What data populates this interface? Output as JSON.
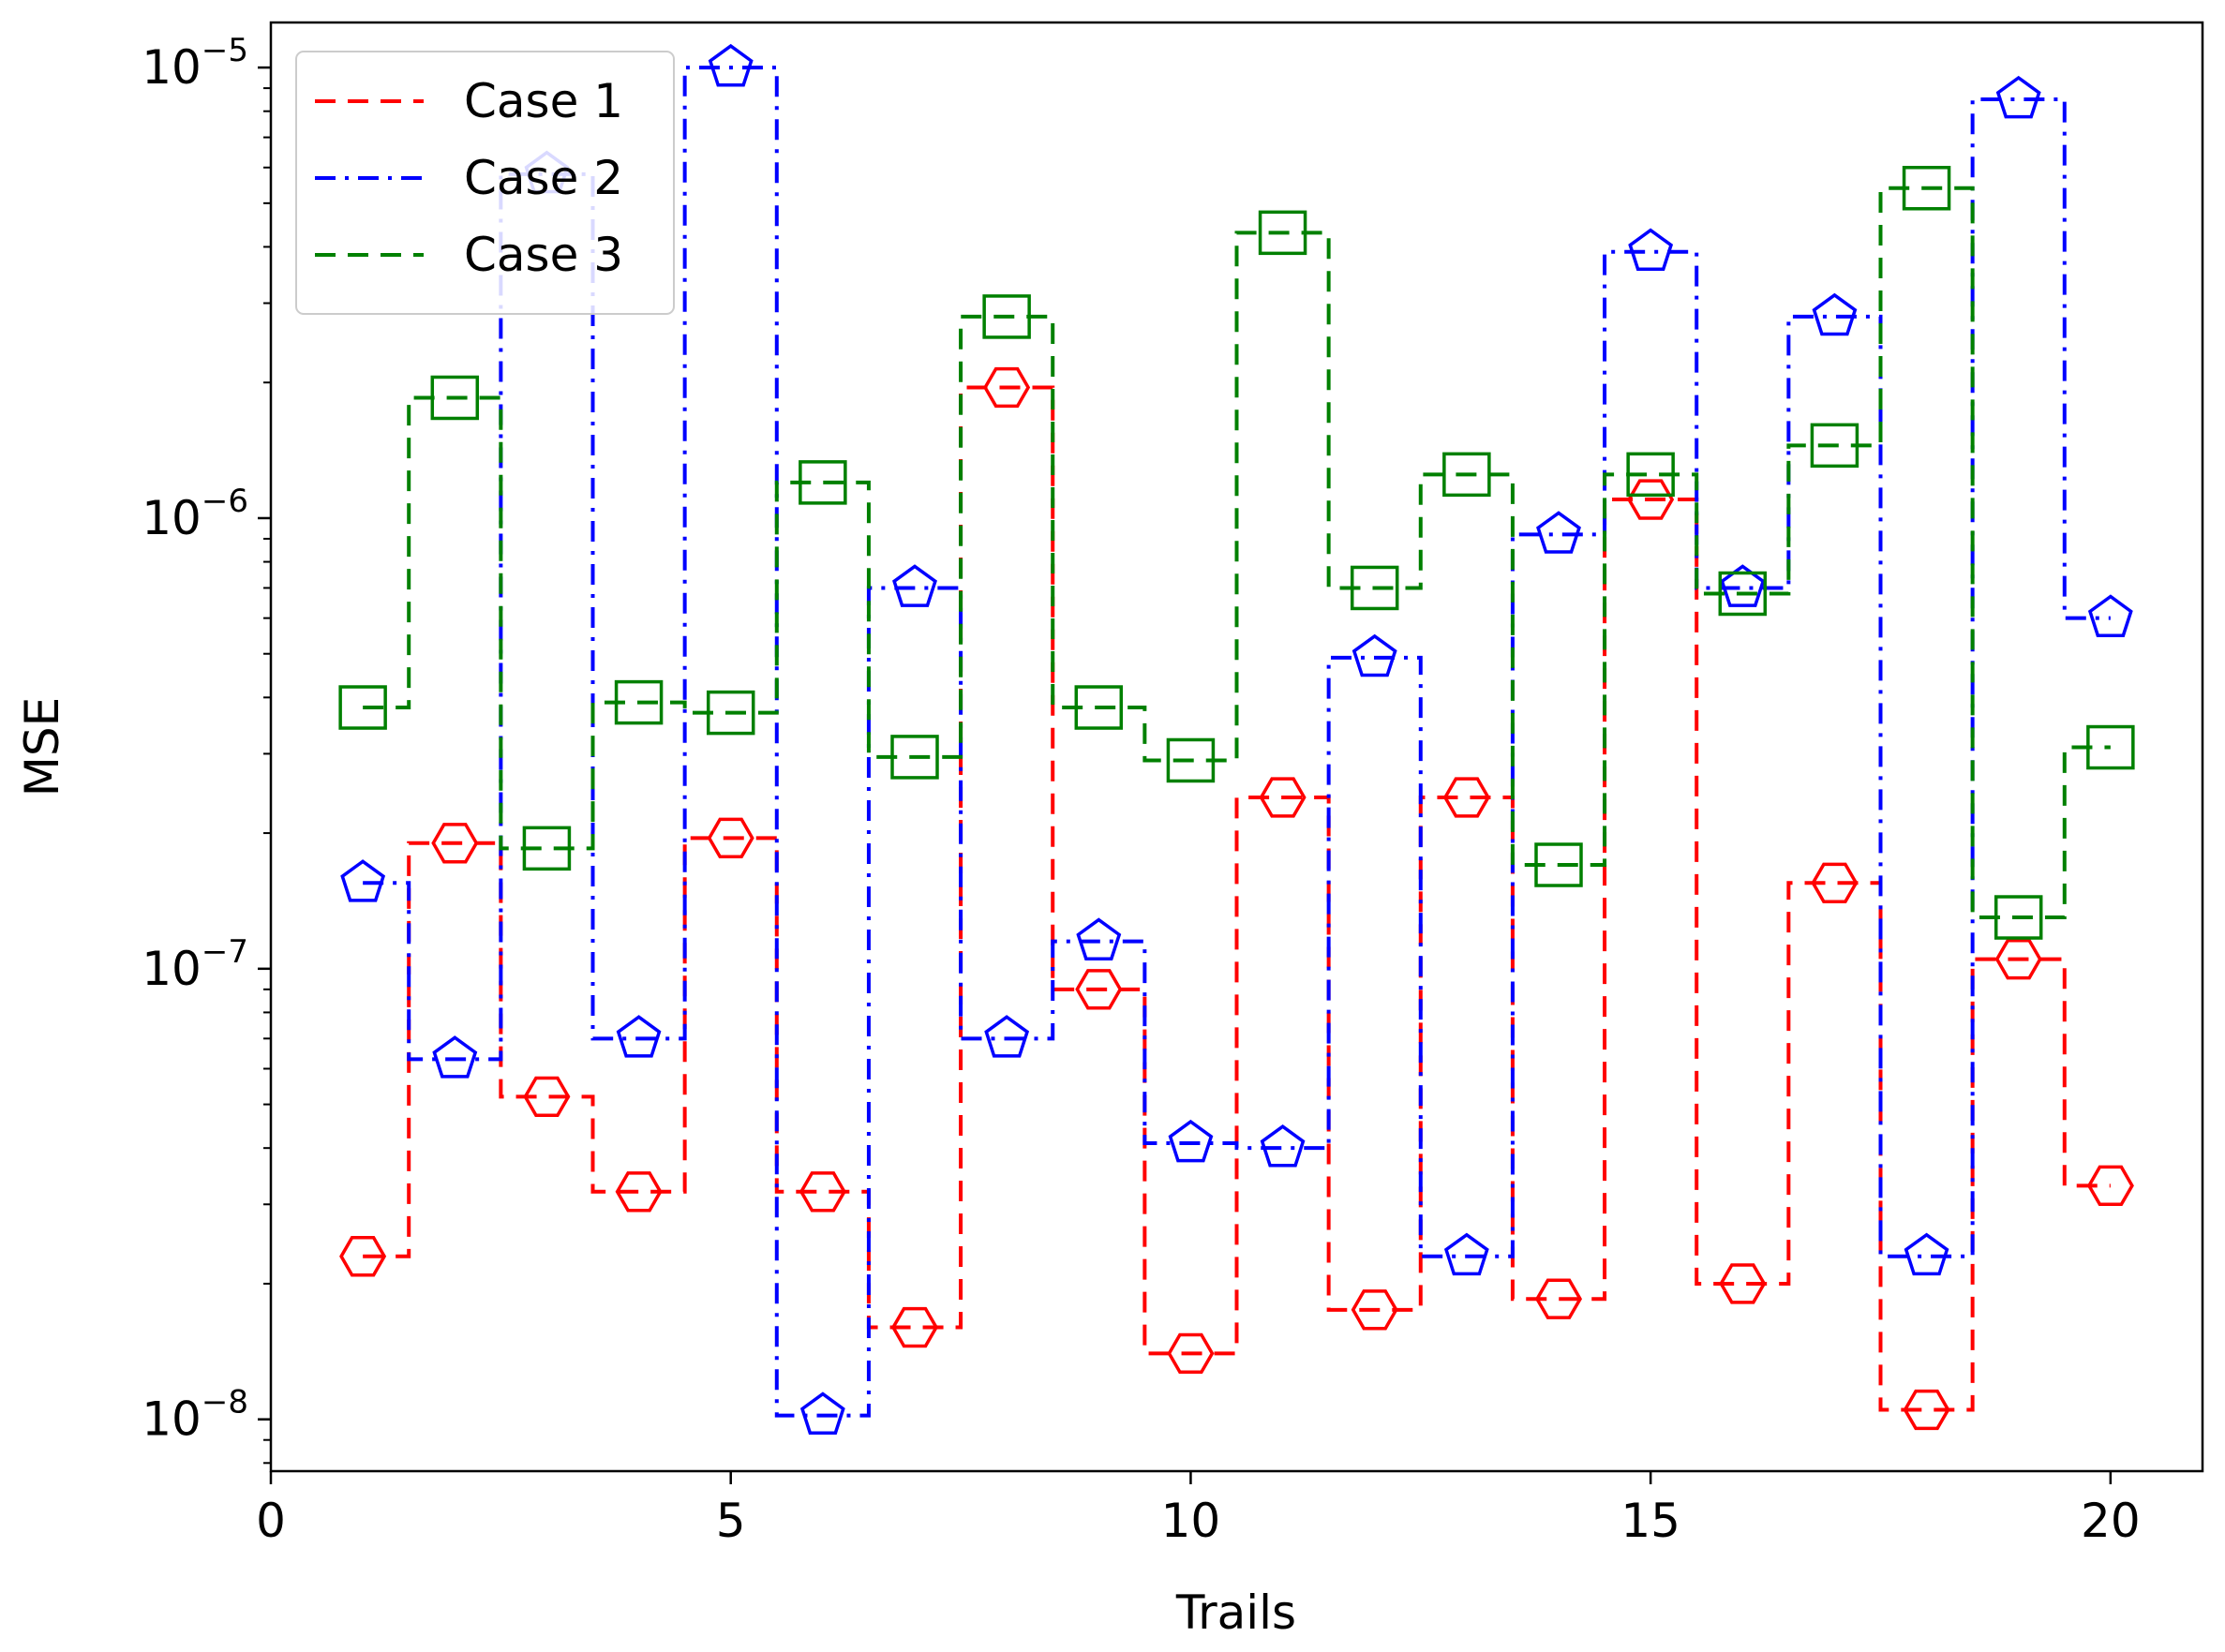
{
  "chart_data": {
    "type": "line",
    "title": "",
    "xlabel": "Trails",
    "ylabel": "MSE",
    "xlim": [
      0,
      21
    ],
    "ylim_exp": [
      -8.115,
      -4.9
    ],
    "yscale": "log",
    "grid": false,
    "legend_position": "top-left",
    "x": [
      1,
      2,
      3,
      4,
      5,
      6,
      7,
      8,
      9,
      10,
      11,
      12,
      13,
      14,
      15,
      16,
      17,
      18,
      19,
      20
    ],
    "x_ticks": [
      0,
      5,
      10,
      15,
      20
    ],
    "x_tick_labels": [
      "0",
      "5",
      "10",
      "15",
      "20"
    ],
    "y_ticks": [
      {
        "value": 1e-08,
        "base": "10",
        "exp": "−8"
      },
      {
        "value": 1e-07,
        "base": "10",
        "exp": "−7"
      },
      {
        "value": 1e-06,
        "base": "10",
        "exp": "−6"
      },
      {
        "value": 1e-05,
        "base": "10",
        "exp": "−5"
      }
    ],
    "series": [
      {
        "name": "Case 1",
        "color": "#ff0000",
        "dash": "dashed",
        "marker": "hexagon",
        "values": [
          2.3e-08,
          1.9e-07,
          5.2e-08,
          3.2e-08,
          1.95e-07,
          3.2e-08,
          1.6e-08,
          1.95e-06,
          9e-08,
          1.4e-08,
          2.4e-07,
          1.75e-08,
          2.4e-07,
          1.85e-08,
          1.1e-06,
          2e-08,
          1.55e-07,
          1.05e-08,
          1.05e-07,
          3.3e-08
        ]
      },
      {
        "name": "Case 2",
        "color": "#0000ff",
        "dash": "dashdot",
        "marker": "pentagon",
        "values": [
          1.55e-07,
          6.3e-08,
          5.8e-06,
          7e-08,
          1e-05,
          1.02e-08,
          7e-07,
          7e-08,
          1.15e-07,
          4.1e-08,
          4e-08,
          4.9e-07,
          2.3e-08,
          9.2e-07,
          3.9e-06,
          7e-07,
          2.8e-06,
          2.3e-08,
          8.5e-06,
          6e-07
        ]
      },
      {
        "name": "Case 3",
        "color": "#008000",
        "dash": "dashed",
        "marker": "square",
        "values": [
          3.8e-07,
          1.85e-06,
          1.85e-07,
          3.9e-07,
          3.7e-07,
          1.2e-06,
          2.95e-07,
          2.8e-06,
          3.8e-07,
          2.9e-07,
          4.3e-06,
          7e-07,
          1.25e-06,
          1.7e-07,
          1.25e-06,
          6.8e-07,
          1.45e-06,
          5.4e-06,
          1.3e-07,
          3.1e-07
        ]
      }
    ]
  }
}
